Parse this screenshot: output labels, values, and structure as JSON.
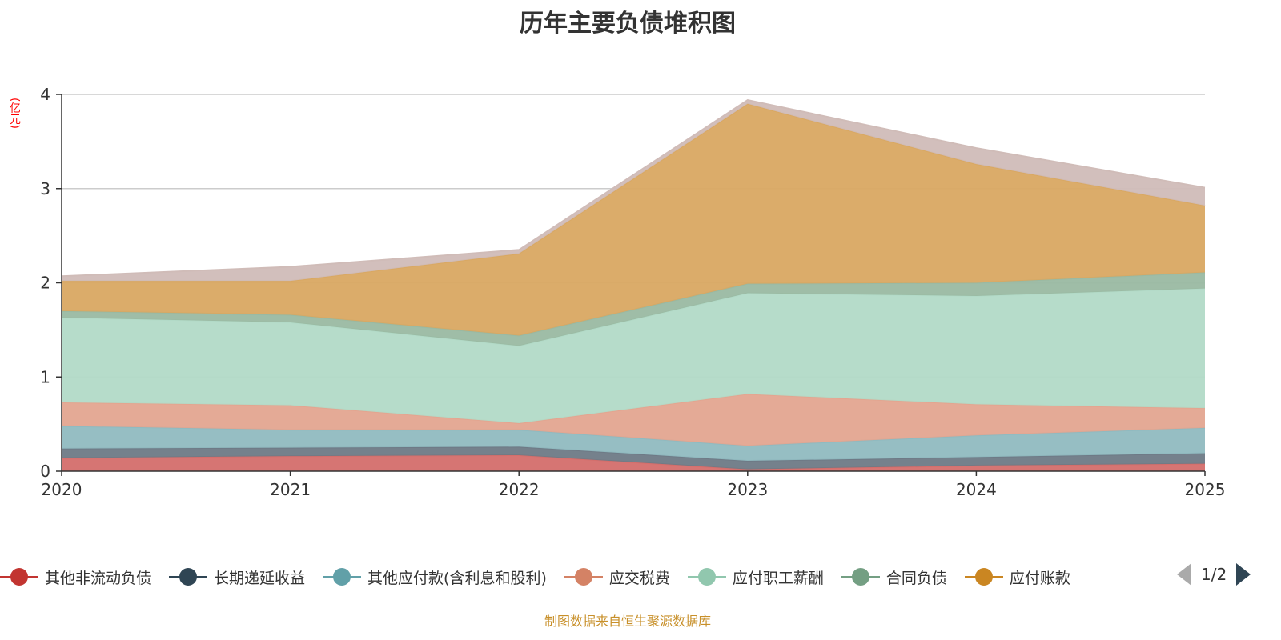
{
  "chart_data": {
    "type": "area",
    "title": "历年主要负债堆积图",
    "ylabel": "(亿元)",
    "xlabel": "",
    "ylim": [
      0,
      4
    ],
    "yticks": [
      "0",
      "1",
      "2",
      "3",
      "4"
    ],
    "categories": [
      "2020",
      "2021",
      "2022",
      "2023",
      "2024",
      "2025"
    ],
    "stacked": true,
    "grid": true,
    "legend_position": "bottom",
    "series": [
      {
        "name": "其他非流动负债",
        "color": "#c23531",
        "fill": "#d46e6b",
        "values": [
          0.14,
          0.16,
          0.17,
          0.02,
          0.06,
          0.08
        ]
      },
      {
        "name": "长期递延收益",
        "color": "#2f4554",
        "fill": "#6e7a86",
        "values": [
          0.1,
          0.09,
          0.09,
          0.09,
          0.09,
          0.11
        ]
      },
      {
        "name": "其他应付款(含利息和股利)",
        "color": "#61a0a8",
        "fill": "#90bac0",
        "values": [
          0.24,
          0.19,
          0.18,
          0.16,
          0.23,
          0.27
        ]
      },
      {
        "name": "应交税费",
        "color": "#d48265",
        "fill": "#e3a590",
        "values": [
          0.25,
          0.26,
          0.07,
          0.55,
          0.33,
          0.21
        ]
      },
      {
        "name": "应付职工薪酬",
        "color": "#91c7ae",
        "fill": "#b2dac7",
        "values": [
          0.9,
          0.88,
          0.82,
          1.07,
          1.15,
          1.27
        ]
      },
      {
        "name": "合同负债",
        "color": "#749f83",
        "fill": "#9ab9a2",
        "values": [
          0.07,
          0.08,
          0.11,
          0.1,
          0.14,
          0.17
        ]
      },
      {
        "name": "应付账款",
        "color": "#ca8622",
        "fill": "#d9a862",
        "values": [
          0.32,
          0.36,
          0.87,
          1.91,
          1.26,
          0.71
        ]
      },
      {
        "name": "",
        "color": "#bda29a",
        "fill": "#d0bcb8",
        "values": [
          0.05,
          0.15,
          0.04,
          0.04,
          0.17,
          0.19
        ]
      }
    ]
  },
  "legend_page": "1/2",
  "footer": "制图数据来自恒生聚源数据库"
}
